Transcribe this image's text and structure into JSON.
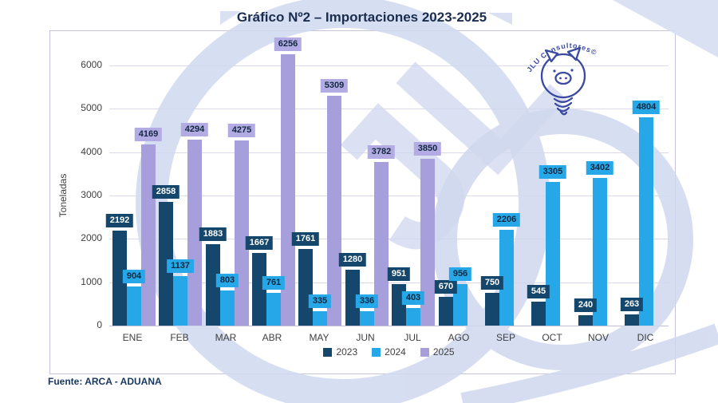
{
  "title": "Gráfico Nº2 – Importaciones 2023-2025",
  "source": "Fuente: ARCA - ADUANA",
  "logo": {
    "text": "JLU Consultores©",
    "ink_color": "#3b4aa1"
  },
  "watermark_color": "#cfd8ee",
  "chart_data": {
    "type": "bar",
    "title": "Gráfico Nº2 – Importaciones 2023-2025",
    "xlabel": "",
    "ylabel": "Toneladas",
    "categories": [
      "ENE",
      "FEB",
      "MAR",
      "ABR",
      "MAY",
      "JUN",
      "JUL",
      "AGO",
      "SEP",
      "OCT",
      "NOV",
      "DIC"
    ],
    "series": [
      {
        "name": "2023",
        "color": "#14476b",
        "label_bg": "#14476b",
        "label_color": "#ffffff",
        "values": [
          2192,
          2858,
          1883,
          1667,
          1761,
          1280,
          951,
          670,
          750,
          545,
          240,
          263
        ]
      },
      {
        "name": "2024",
        "color": "#26a7e8",
        "label_bg": "#26a7e8",
        "label_color": "#12283f",
        "values": [
          904,
          1137,
          803,
          761,
          335,
          336,
          403,
          956,
          2206,
          3305,
          3402,
          4804
        ]
      },
      {
        "name": "2025",
        "color": "#a79fdc",
        "label_bg": "#b2abe4",
        "label_color": "#12283f",
        "values": [
          4169,
          4294,
          4275,
          6256,
          5309,
          3782,
          3850,
          null,
          null,
          null,
          null,
          null
        ]
      }
    ],
    "ylim": [
      0,
      6500
    ],
    "yticks": [
      0,
      1000,
      2000,
      3000,
      4000,
      5000,
      6000
    ],
    "grid": true,
    "legend_position": "bottom"
  }
}
